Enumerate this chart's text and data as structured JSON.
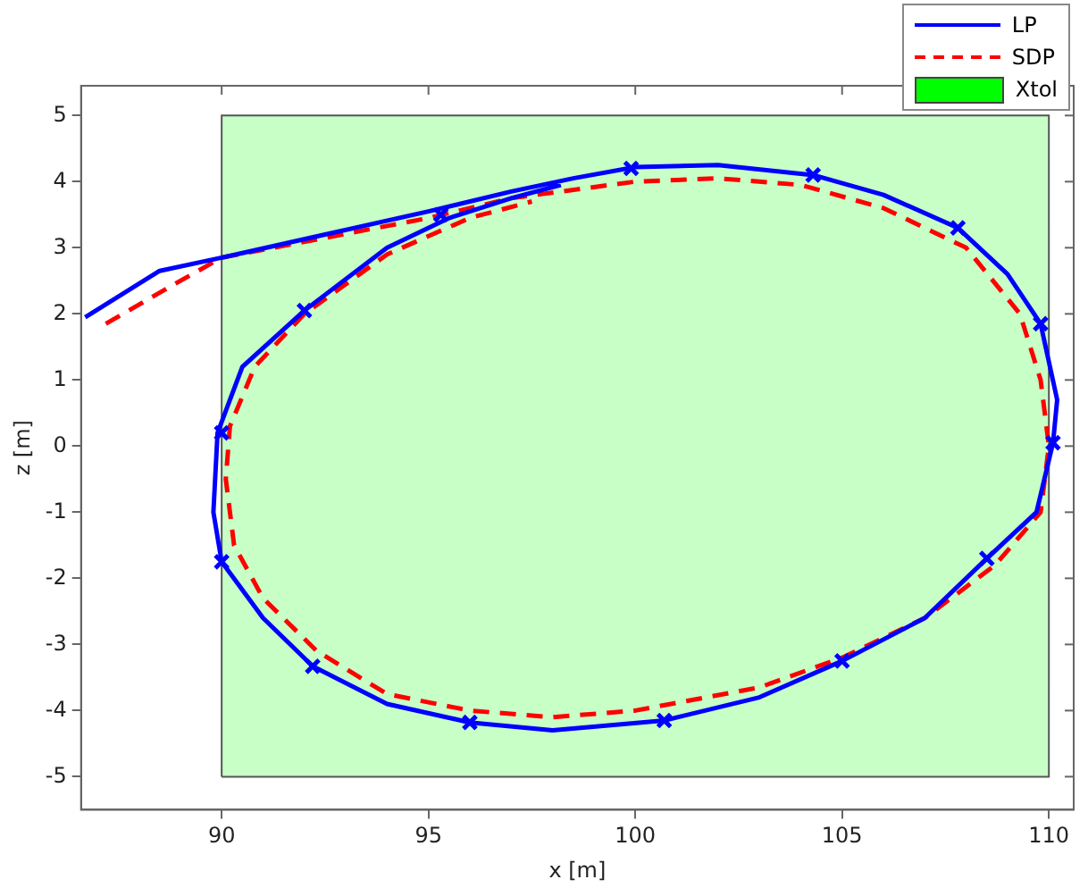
{
  "chart_data": {
    "type": "line",
    "xlabel": "x [m]",
    "ylabel": "z [m]",
    "xlim": [
      86.6,
      110.6
    ],
    "ylim": [
      -5.5,
      5.45
    ],
    "xticks": [
      90,
      95,
      100,
      105,
      110
    ],
    "yticks": [
      -5,
      -4,
      -3,
      -2,
      -1,
      0,
      1,
      2,
      3,
      4,
      5
    ],
    "grid": false,
    "legend": "top right",
    "series": [
      {
        "name": "LP",
        "color": "#0000ff",
        "line_style": "solid",
        "marker": "none",
        "x": [
          86.7,
          88.5,
          90,
          92.5,
          95,
          97,
          98.5,
          100,
          102,
          104.3,
          106,
          107.8,
          109,
          109.8,
          110.2,
          110.1,
          109.7,
          108.5,
          107,
          105,
          103,
          100.7,
          98,
          96,
          94,
          92.2,
          91,
          90,
          89.8,
          89.9,
          90.5,
          92,
          94,
          95.5,
          97,
          98.2
        ],
        "values": [
          1.95,
          2.65,
          2.85,
          3.2,
          3.55,
          3.85,
          4.05,
          4.22,
          4.25,
          4.1,
          3.8,
          3.3,
          2.6,
          1.85,
          0.7,
          0.05,
          -1,
          -1.7,
          -2.6,
          -3.25,
          -3.8,
          -4.15,
          -4.3,
          -4.18,
          -3.9,
          -3.33,
          -2.6,
          -1.75,
          -1,
          0.2,
          1.2,
          2.05,
          3,
          3.45,
          3.75,
          3.95
        ]
      },
      {
        "name": "SDP",
        "color": "#ff0000",
        "line_style": "dashed",
        "marker": "none",
        "x": [
          87.2,
          89,
          90,
          92.5,
          95,
          97,
          100,
          102,
          104,
          106,
          108,
          109.3,
          109.8,
          110,
          109.8,
          108.7,
          107,
          105,
          103,
          100,
          98,
          96,
          94,
          92.3,
          91,
          90.3,
          90.1,
          90.2,
          90.8,
          92,
          94,
          96,
          97.5
        ],
        "values": [
          1.85,
          2.5,
          2.85,
          3.15,
          3.45,
          3.75,
          4,
          4.05,
          3.95,
          3.6,
          3,
          2,
          1,
          0,
          -1,
          -1.8,
          -2.6,
          -3.2,
          -3.65,
          -4,
          -4.1,
          -4,
          -3.75,
          -3.1,
          -2.3,
          -1.5,
          -0.5,
          0.3,
          1.2,
          2,
          2.9,
          3.45,
          3.7
        ]
      },
      {
        "name": "Xtol",
        "type": "area",
        "color": "#00ff00",
        "x": [
          90,
          90,
          110,
          110,
          90
        ],
        "values": [
          -5,
          5,
          5,
          -5,
          -5
        ]
      },
      {
        "type": "scatter",
        "color": "#0000ff",
        "marker": "cross",
        "x": [
          95.3,
          99.9,
          104.3,
          107.8,
          109.8,
          110.1,
          108.5,
          105,
          100.7,
          96,
          92.2,
          90,
          90,
          92
        ],
        "values": [
          3.5,
          4.2,
          4.1,
          3.3,
          1.85,
          0.05,
          -1.7,
          -3.25,
          -4.15,
          -4.18,
          -3.33,
          -1.75,
          0.2,
          2.05
        ]
      }
    ]
  }
}
